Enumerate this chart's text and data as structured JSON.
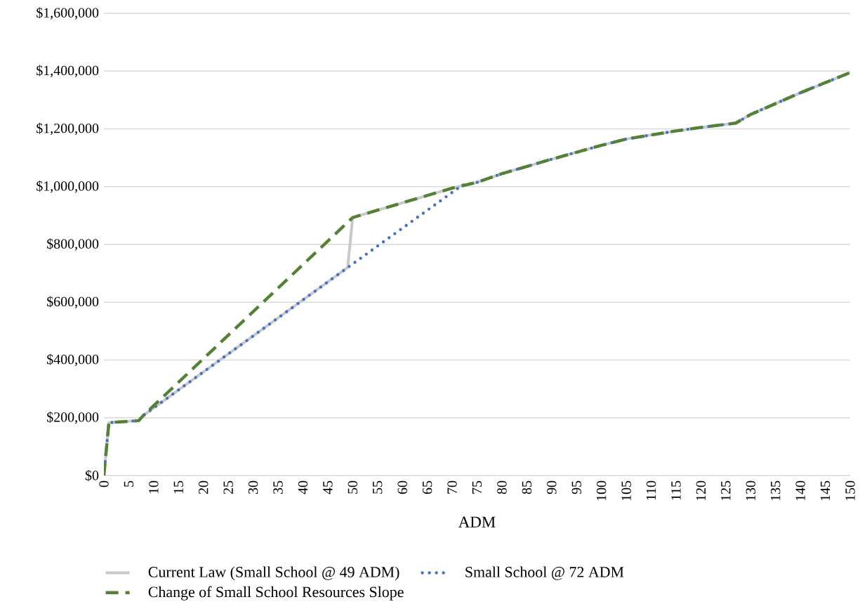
{
  "chart_data": {
    "type": "line",
    "xlabel": "ADM",
    "xlim": [
      0,
      150
    ],
    "ylim": [
      0,
      1600000
    ],
    "xticks": [
      0,
      5,
      10,
      15,
      20,
      25,
      30,
      35,
      40,
      45,
      50,
      55,
      60,
      65,
      70,
      75,
      80,
      85,
      90,
      95,
      100,
      105,
      110,
      115,
      120,
      125,
      130,
      135,
      140,
      145,
      150
    ],
    "yticks": [
      {
        "value": 0,
        "label": "$0"
      },
      {
        "value": 200000,
        "label": "$200,000"
      },
      {
        "value": 400000,
        "label": "$400,000"
      },
      {
        "value": 600000,
        "label": "$600,000"
      },
      {
        "value": 800000,
        "label": "$800,000"
      },
      {
        "value": 1000000,
        "label": "$1,000,000"
      },
      {
        "value": 1200000,
        "label": "$1,200,000"
      },
      {
        "value": 1400000,
        "label": "$1,400,000"
      },
      {
        "value": 1600000,
        "label": "$1,600,000"
      }
    ],
    "grid": "y",
    "legend": "bottom",
    "marker": "none",
    "series": [
      {
        "name": "Current Law (Small School @ 49 ADM)",
        "color": "#c9c9c9",
        "line_style": "solid",
        "x": [
          0,
          1,
          7,
          8,
          49,
          50,
          70,
          75,
          80,
          90,
          100,
          105,
          115,
          120,
          127,
          130,
          140,
          150
        ],
        "values": [
          0,
          183000,
          190000,
          209000,
          720000,
          893000,
          995000,
          1015000,
          1045000,
          1095000,
          1143000,
          1165000,
          1193000,
          1205000,
          1220000,
          1250000,
          1325000,
          1395000
        ]
      },
      {
        "name": "Small School @ 72 ADM",
        "color": "#4472c4",
        "line_style": "dotted",
        "x": [
          0,
          1,
          7,
          8,
          49,
          72,
          75,
          80,
          90,
          100,
          105,
          115,
          120,
          127,
          130,
          140,
          150
        ],
        "values": [
          0,
          183000,
          190000,
          209000,
          720000,
          1005000,
          1015000,
          1045000,
          1095000,
          1143000,
          1165000,
          1193000,
          1205000,
          1220000,
          1250000,
          1325000,
          1395000
        ]
      },
      {
        "name": "Change of Small School Resources Slope",
        "color": "#548235",
        "line_style": "dashed",
        "x": [
          0,
          1,
          7,
          8,
          50,
          70,
          75,
          80,
          90,
          100,
          105,
          115,
          120,
          127,
          130,
          140,
          150
        ],
        "values": [
          0,
          183000,
          190000,
          209000,
          893000,
          995000,
          1015000,
          1045000,
          1095000,
          1143000,
          1165000,
          1193000,
          1205000,
          1220000,
          1250000,
          1325000,
          1395000
        ]
      }
    ]
  }
}
